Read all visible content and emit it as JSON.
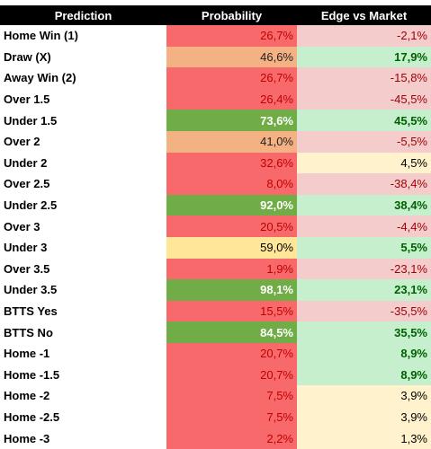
{
  "table": {
    "header": [
      "Prediction",
      "Probability",
      "Edge vs Market"
    ],
    "rows": [
      [
        "Home Win (1)",
        "26,7%",
        "-2,1%"
      ],
      [
        "Draw (X)",
        "46,6%",
        "17,9%"
      ],
      [
        "Away Win (2)",
        "26,7%",
        "-15,8%"
      ],
      [
        "Over 1.5",
        "26,4%",
        "-45,5%"
      ],
      [
        "Under 1.5",
        "73,6%",
        "45,5%"
      ],
      [
        "Over 2",
        "41,0%",
        "-5,5%"
      ],
      [
        "Under 2",
        "32,6%",
        "4,5%"
      ],
      [
        "Over 2.5",
        "8,0%",
        "-38,4%"
      ],
      [
        "Under 2.5",
        "92,0%",
        "38,4%"
      ],
      [
        "Over 3",
        "20,5%",
        "-4,4%"
      ],
      [
        "Under 3",
        "59,0%",
        "5,5%"
      ],
      [
        "Over 3.5",
        "1,9%",
        "-23,1%"
      ],
      [
        "Under 3.5",
        "98,1%",
        "23,1%"
      ],
      [
        "BTTS Yes",
        "15,5%",
        "-35,5%"
      ],
      [
        "BTTS No",
        "84,5%",
        "35,5%"
      ],
      [
        "Home -1",
        "20,7%",
        "8,9%"
      ],
      [
        "Home -1.5",
        "20,7%",
        "8,9%"
      ],
      [
        "Home -2",
        "7,5%",
        "3,9%"
      ],
      [
        "Home -2.5",
        "7,5%",
        "3,9%"
      ],
      [
        "Home -3",
        "2,2%",
        "1,3%"
      ]
    ]
  }
}
